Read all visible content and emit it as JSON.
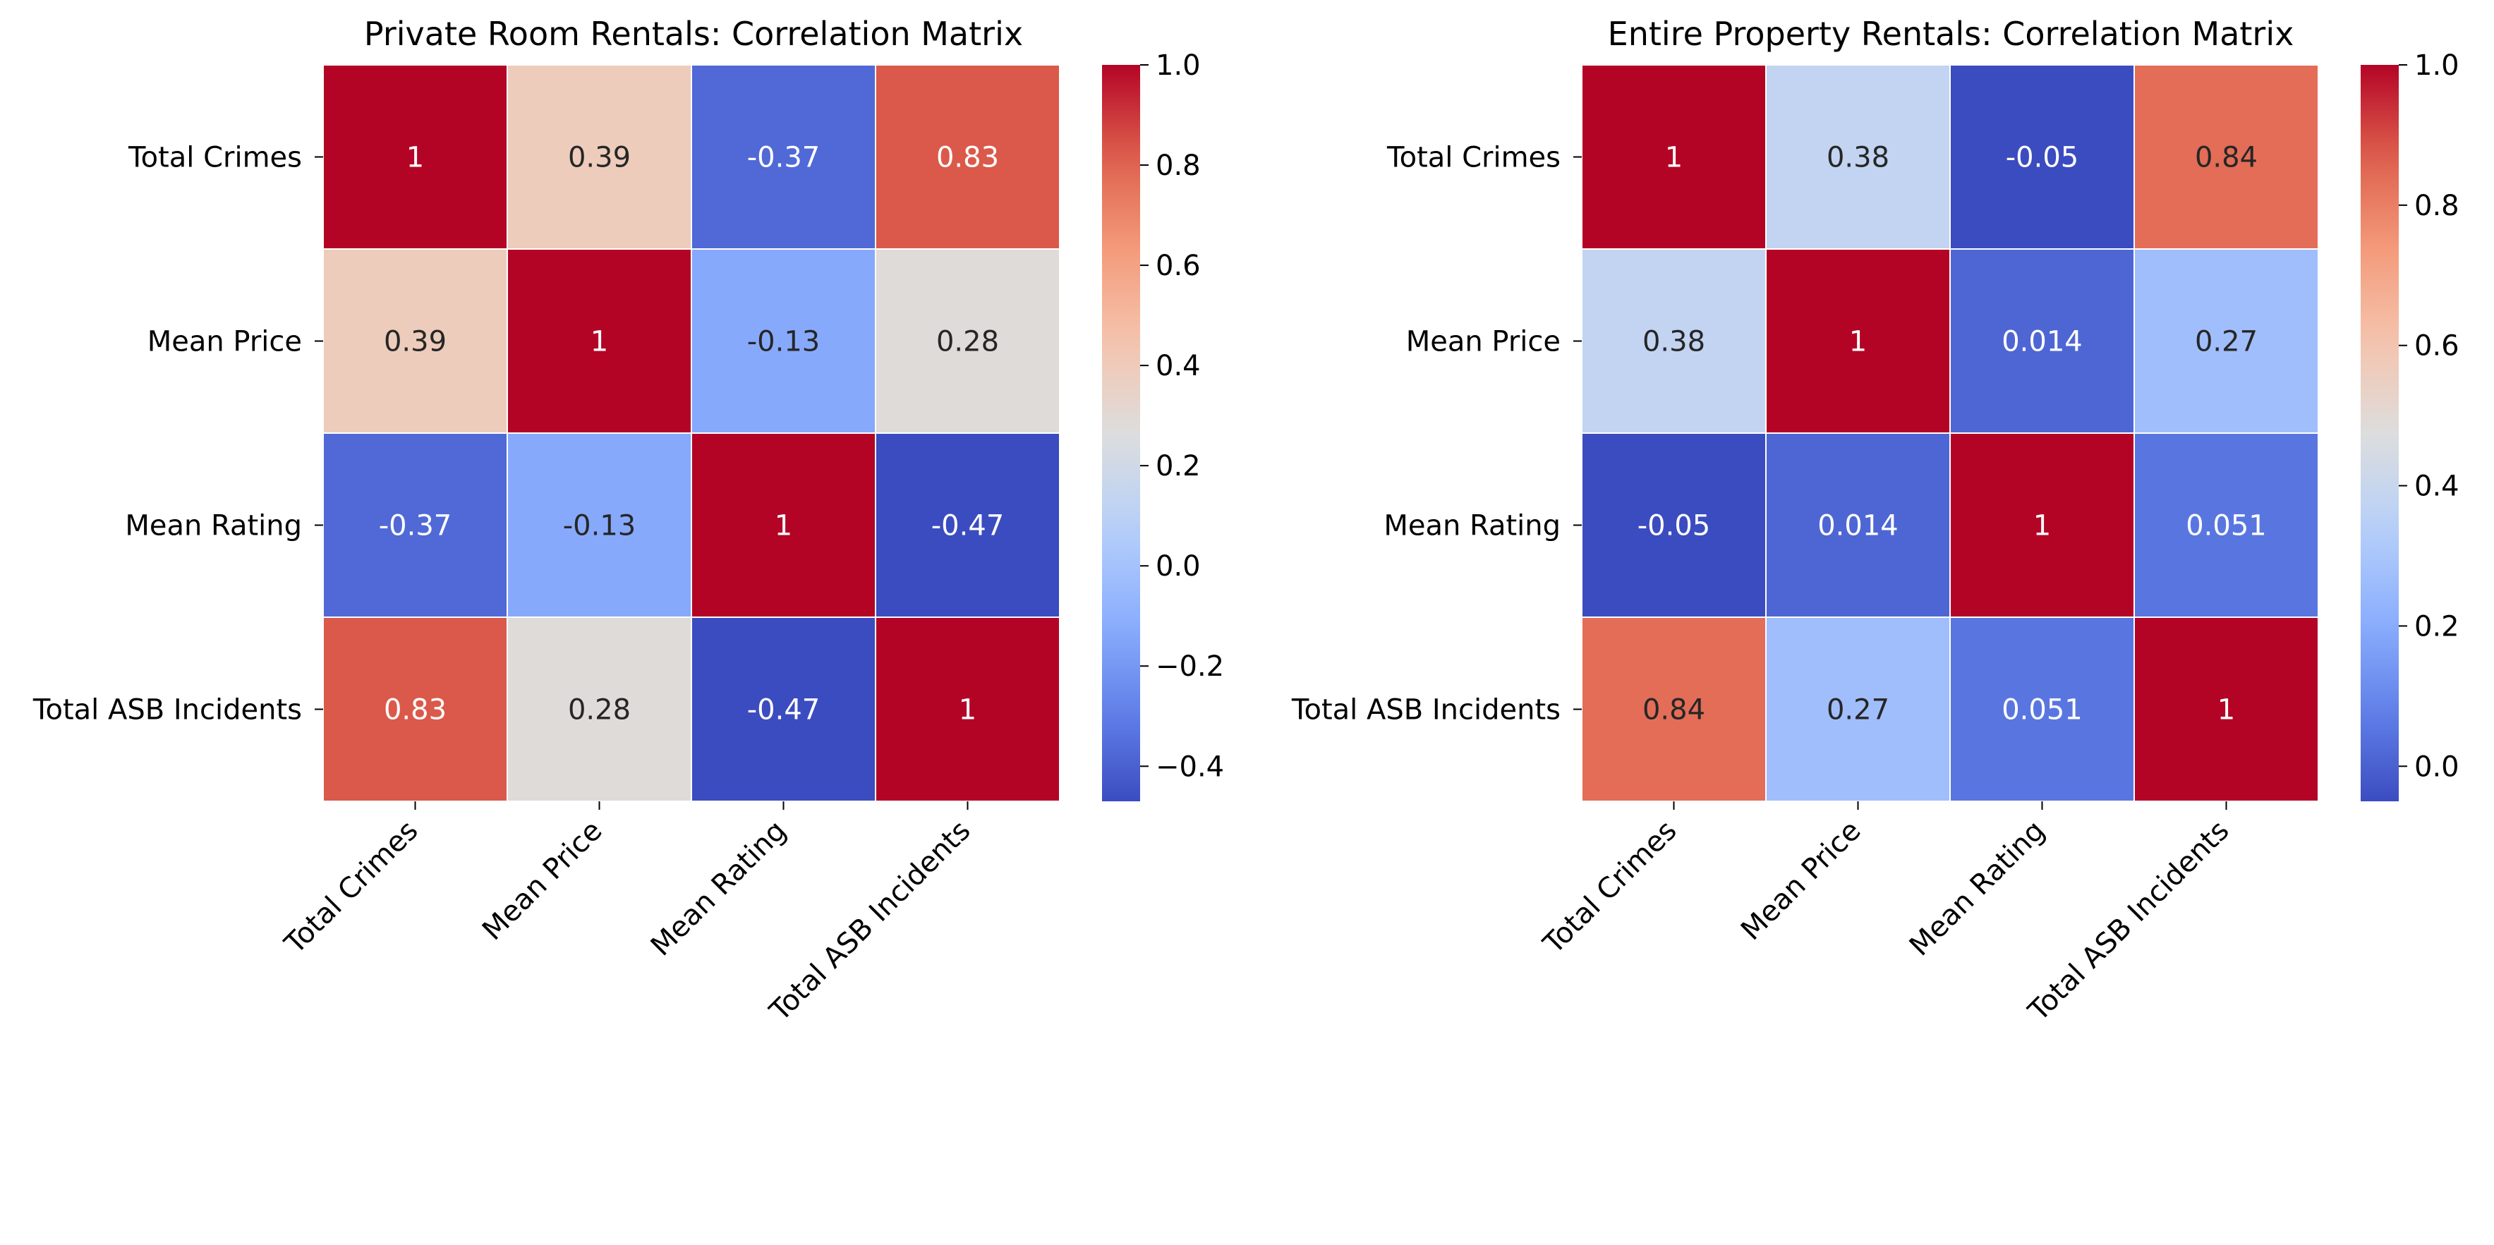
{
  "chart_data": [
    {
      "type": "heatmap",
      "title": "Private Room Rentals: Correlation Matrix",
      "row_labels": [
        "Total Crimes",
        "Mean Price",
        "Mean Rating",
        "Total ASB Incidents"
      ],
      "col_labels": [
        "Total Crimes",
        "Mean Price",
        "Mean Rating",
        "Total ASB Incidents"
      ],
      "values": [
        [
          1,
          0.39,
          -0.37,
          0.83
        ],
        [
          0.39,
          1,
          -0.13,
          0.28
        ],
        [
          -0.37,
          -0.13,
          1,
          -0.47
        ],
        [
          0.83,
          0.28,
          -0.47,
          1
        ]
      ],
      "annotations": [
        [
          "1",
          "0.39",
          "-0.37",
          "0.83"
        ],
        [
          "0.39",
          "1",
          "-0.13",
          "0.28"
        ],
        [
          "-0.37",
          "-0.13",
          "1",
          "-0.47"
        ],
        [
          "0.83",
          "0.28",
          "-0.47",
          "1"
        ]
      ],
      "colorbar": {
        "colormap": "coolwarm",
        "range": [
          -0.47,
          1.0
        ],
        "ticks": [
          -0.4,
          -0.2,
          0.0,
          0.2,
          0.4,
          0.6,
          0.8,
          1.0
        ],
        "tick_labels": [
          "−0.4",
          "−0.2",
          "0.0",
          "0.2",
          "0.4",
          "0.6",
          "0.8",
          "1.0"
        ]
      }
    },
    {
      "type": "heatmap",
      "title": "Entire Property Rentals: Correlation Matrix",
      "row_labels": [
        "Total Crimes",
        "Mean Price",
        "Mean Rating",
        "Total ASB Incidents"
      ],
      "col_labels": [
        "Total Crimes",
        "Mean Price",
        "Mean Rating",
        "Total ASB Incidents"
      ],
      "values": [
        [
          1,
          0.38,
          -0.05,
          0.84
        ],
        [
          0.38,
          1,
          0.014,
          0.27
        ],
        [
          -0.05,
          0.014,
          1,
          0.051
        ],
        [
          0.84,
          0.27,
          0.051,
          1
        ]
      ],
      "annotations": [
        [
          "1",
          "0.38",
          "-0.05",
          "0.84"
        ],
        [
          "0.38",
          "1",
          "0.014",
          "0.27"
        ],
        [
          "-0.05",
          "0.014",
          "1",
          "0.051"
        ],
        [
          "0.84",
          "0.27",
          "0.051",
          "1"
        ]
      ],
      "colorbar": {
        "colormap": "coolwarm",
        "range": [
          -0.05,
          1.0
        ],
        "ticks": [
          0.0,
          0.2,
          0.4,
          0.6,
          0.8,
          1.0
        ],
        "tick_labels": [
          "0.0",
          "0.2",
          "0.4",
          "0.6",
          "0.8",
          "1.0"
        ]
      }
    }
  ]
}
